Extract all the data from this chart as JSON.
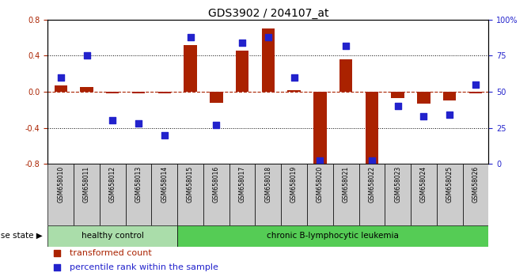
{
  "title": "GDS3902 / 204107_at",
  "samples": [
    "GSM658010",
    "GSM658011",
    "GSM658012",
    "GSM658013",
    "GSM658014",
    "GSM658015",
    "GSM658016",
    "GSM658017",
    "GSM658018",
    "GSM658019",
    "GSM658020",
    "GSM658021",
    "GSM658022",
    "GSM658023",
    "GSM658024",
    "GSM658025",
    "GSM658026"
  ],
  "red_values": [
    0.07,
    0.05,
    -0.02,
    -0.02,
    -0.02,
    0.52,
    -0.12,
    0.46,
    0.7,
    0.02,
    -0.82,
    0.36,
    -0.82,
    -0.07,
    -0.13,
    -0.1,
    -0.02
  ],
  "blue_percentiles": [
    60,
    75,
    30,
    28,
    20,
    88,
    27,
    84,
    88,
    60,
    2,
    82,
    2,
    40,
    33,
    34,
    55
  ],
  "healthy_count": 5,
  "group_labels": [
    "healthy control",
    "chronic B-lymphocytic leukemia"
  ],
  "group_color_hc": "#aaddaa",
  "group_color_cbl": "#55cc55",
  "bar_color": "#aa2200",
  "dot_color": "#2222cc",
  "ylim": [
    -0.8,
    0.8
  ],
  "yticks": [
    -0.8,
    -0.4,
    0.0,
    0.4,
    0.8
  ],
  "y2lim": [
    0,
    100
  ],
  "y2_ticks": [
    0,
    25,
    50,
    75,
    100
  ],
  "y2_ticklabels": [
    "0",
    "25",
    "50",
    "75",
    "100%"
  ],
  "dotted_lines": [
    -0.4,
    0.4
  ],
  "legend_labels": [
    "transformed count",
    "percentile rank within the sample"
  ],
  "legend_colors": [
    "#aa2200",
    "#2222cc"
  ],
  "disease_state_label": "disease state",
  "bar_width": 0.5,
  "dot_size": 35,
  "label_box_color": "#cccccc"
}
